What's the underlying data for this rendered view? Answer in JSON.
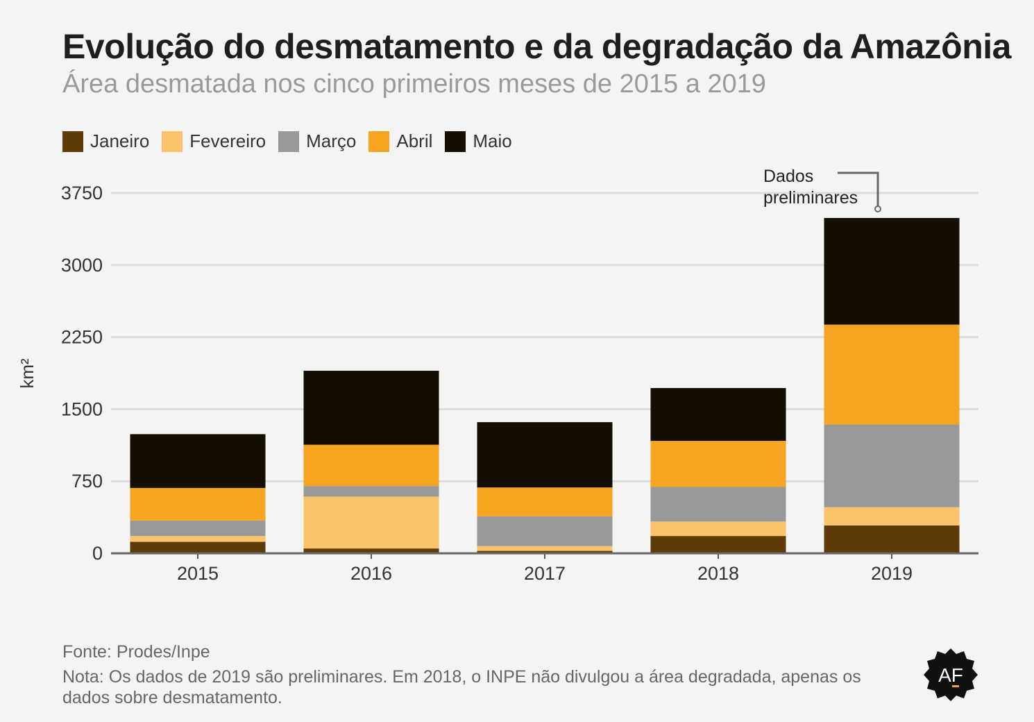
{
  "header": {
    "title": "Evolução do desmatamento e da degradação da Amazônia",
    "subtitle": "Área desmatada nos cinco primeiros meses de 2015 a 2019"
  },
  "footer": {
    "source": "Fonte: Prodes/Inpe",
    "note": "Nota: Os dados de 2019 são preliminares. Em 2018, o INPE não divulgou a área degradada, apenas os dados sobre desmatamento."
  },
  "logo": {
    "text": "AF",
    "icon": "af-logo-icon"
  },
  "chart_data": {
    "type": "bar",
    "stacked": true,
    "title": "Evolução do desmatamento e da degradação da Amazônia",
    "subtitle": "Área desmatada nos cinco primeiros meses de 2015 a 2019",
    "ylabel": "km²",
    "ylim": [
      0,
      3750
    ],
    "yticks": [
      0,
      750,
      1500,
      2250,
      3000,
      3750
    ],
    "grid": true,
    "legend_position": "top-left",
    "categories": [
      "2015",
      "2016",
      "2017",
      "2018",
      "2019"
    ],
    "series": [
      {
        "name": "Janeiro",
        "color": "#5e3b06",
        "values": [
          120,
          50,
          25,
          180,
          290
        ]
      },
      {
        "name": "Fevereiro",
        "color": "#fbc46a",
        "values": [
          60,
          540,
          50,
          150,
          190
        ]
      },
      {
        "name": "Março",
        "color": "#999999",
        "values": [
          160,
          110,
          310,
          360,
          860
        ]
      },
      {
        "name": "Abril",
        "color": "#f7a521",
        "values": [
          340,
          430,
          300,
          480,
          1040
        ]
      },
      {
        "name": "Maio",
        "color": "#150e02",
        "values": [
          560,
          770,
          680,
          550,
          1110
        ]
      }
    ],
    "annotation": {
      "category": "2019",
      "lines": [
        "Dados",
        "preliminares"
      ]
    }
  }
}
